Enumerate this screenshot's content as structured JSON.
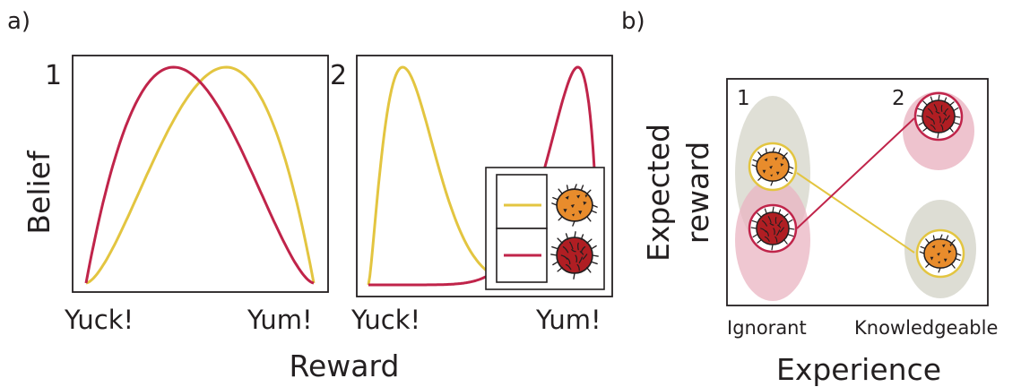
{
  "panel_a": {
    "label": "a)",
    "ylabel": "Belief",
    "xlabel": "Reward",
    "plot1": {
      "number": "1",
      "x_left": "Yuck!",
      "x_right": "Yum!"
    },
    "plot2": {
      "number": "2",
      "x_left": "Yuck!",
      "x_right": "Yum!"
    },
    "legend": [
      {
        "color": "#e3c540",
        "fruit": "orange spiky fruit"
      },
      {
        "color": "#c0244a",
        "fruit": "red spiky fruit"
      }
    ]
  },
  "panel_b": {
    "label": "b)",
    "ylabel_line1": "Expected",
    "ylabel_line2": "reward",
    "xlabel": "Experience",
    "stage1": {
      "number": "1",
      "label": "Ignorant"
    },
    "stage2": {
      "number": "2",
      "label": "Knowledgeable"
    }
  },
  "colors": {
    "yellow": "#e3c540",
    "crimson": "#c0244a",
    "orange_fruit": "#e88c2c",
    "red_fruit": "#b01e23",
    "grey_blob": "#d9d9cf",
    "pink_blob": "#eab4c2",
    "axis": "#231f20"
  }
}
